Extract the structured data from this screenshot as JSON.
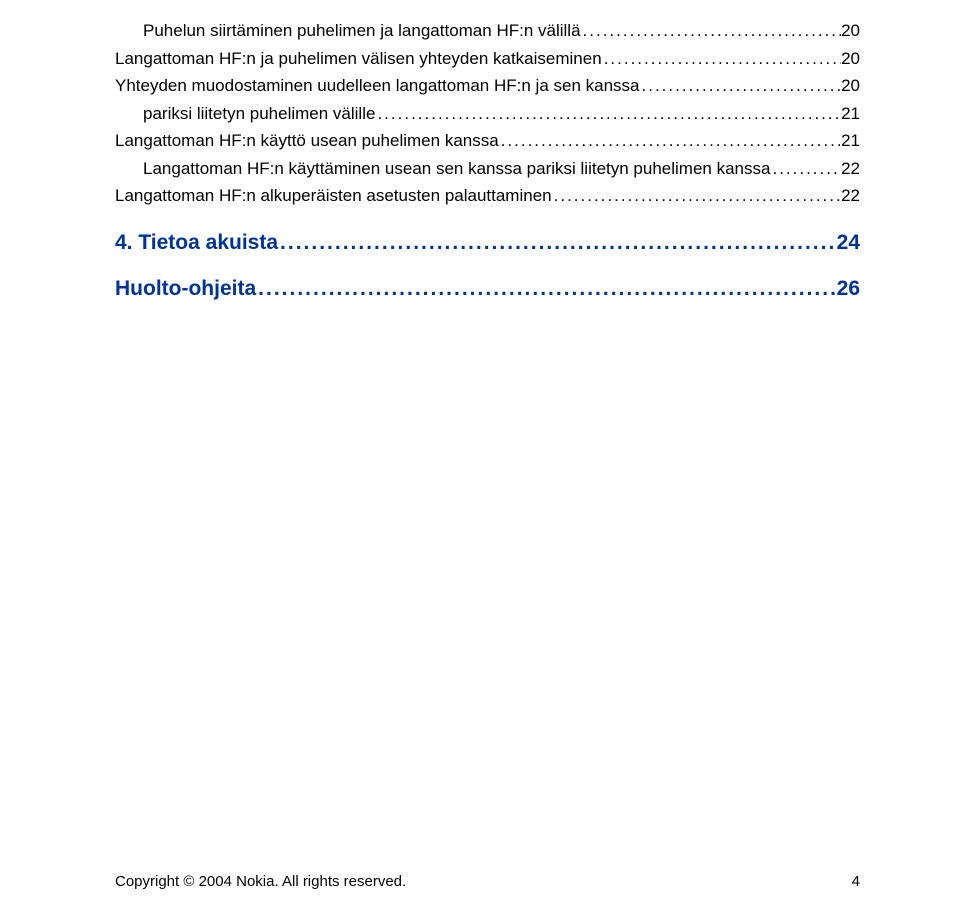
{
  "toc": {
    "items": [
      {
        "label": "Puhelun siirtäminen puhelimen ja langattoman HF:n välillä",
        "page": "20",
        "indented": true
      },
      {
        "label": "Langattoman HF:n ja puhelimen välisen yhteyden katkaiseminen",
        "page": "20",
        "indented": false
      },
      {
        "label": "Yhteyden muodostaminen uudelleen langattoman HF:n ja sen kanssa",
        "page": "20",
        "indented": false,
        "continuation": "pariksi liitetyn puhelimen välille"
      },
      {
        "label": "Langattoman HF:n käyttö usean puhelimen kanssa",
        "page": "21",
        "indented": false
      },
      {
        "label": "Langattoman HF:n käyttäminen usean sen kanssa pariksi liitetyn puhelimen kanssa",
        "page": "22",
        "indented": true
      },
      {
        "label": "Langattoman HF:n alkuperäisten asetusten palauttaminen",
        "page": "22",
        "indented": false
      }
    ],
    "continuation_page": "21"
  },
  "sections": [
    {
      "label": "4. Tietoa akuista",
      "page": "24"
    },
    {
      "label": "Huolto-ohjeita",
      "page": "26"
    }
  ],
  "footer": {
    "copyright": "Copyright © 2004 Nokia. All rights reserved.",
    "page": "4"
  },
  "dots": "......................................................................................................................................................................................................"
}
